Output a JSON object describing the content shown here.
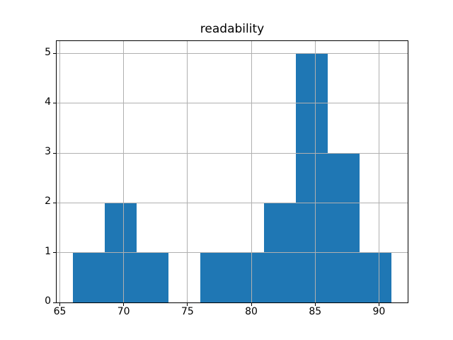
{
  "chart_data": {
    "type": "bar",
    "subtype": "histogram",
    "title": "readability",
    "xlabel": "",
    "ylabel": "",
    "bin_edges": [
      66,
      68.5,
      71,
      73.5,
      76,
      78.5,
      81,
      83.5,
      86,
      88.5,
      91
    ],
    "counts": [
      1,
      2,
      1,
      0,
      1,
      1,
      2,
      5,
      3,
      1
    ],
    "xticks": [
      65,
      70,
      75,
      80,
      85,
      90
    ],
    "yticks": [
      0,
      1,
      2,
      3,
      4,
      5
    ],
    "xlim": [
      64.75,
      92.25
    ],
    "ylim": [
      0,
      5.25
    ],
    "grid": true,
    "grid_above_bars": true,
    "legend": false,
    "colors": {
      "bar": "#1f77b4",
      "grid": "#b0b0b0",
      "spine": "#000000",
      "text": "#000000",
      "background": "#ffffff"
    }
  }
}
